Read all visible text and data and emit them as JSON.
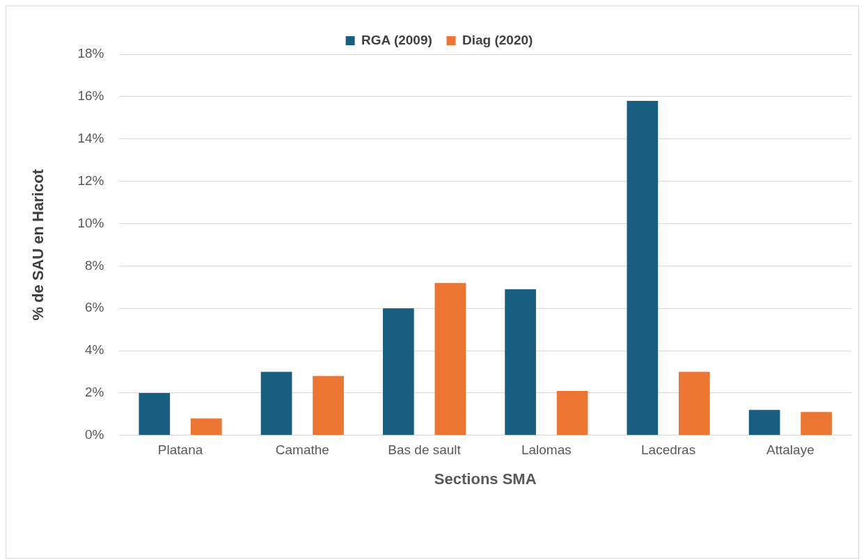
{
  "chart_data": {
    "type": "bar",
    "xlabel": "Sections SMA",
    "ylabel": "% de SAU en Haricot",
    "categories": [
      "Platana",
      "Camathe",
      "Bas de sault",
      "Lalomas",
      "Lacedras",
      "Attalaye"
    ],
    "series": [
      {
        "name": "RGA (2009)",
        "color": "#175e80",
        "values": [
          2.0,
          3.0,
          6.0,
          6.9,
          15.8,
          1.2
        ]
      },
      {
        "name": "Diag (2020)",
        "color": "#ed7532",
        "values": [
          0.8,
          2.8,
          7.2,
          2.1,
          3.0,
          1.1
        ]
      }
    ],
    "ylim": [
      0,
      18
    ],
    "yticks": [
      {
        "value": 0,
        "label": "0%"
      },
      {
        "value": 2,
        "label": "2%"
      },
      {
        "value": 4,
        "label": "4%"
      },
      {
        "value": 6,
        "label": "6%"
      },
      {
        "value": 8,
        "label": "8%"
      },
      {
        "value": 10,
        "label": "10%"
      },
      {
        "value": 12,
        "label": "12%"
      },
      {
        "value": 14,
        "label": "14%"
      },
      {
        "value": 16,
        "label": "16%"
      },
      {
        "value": 18,
        "label": "18%"
      }
    ],
    "grid": "y",
    "legend": "top"
  }
}
